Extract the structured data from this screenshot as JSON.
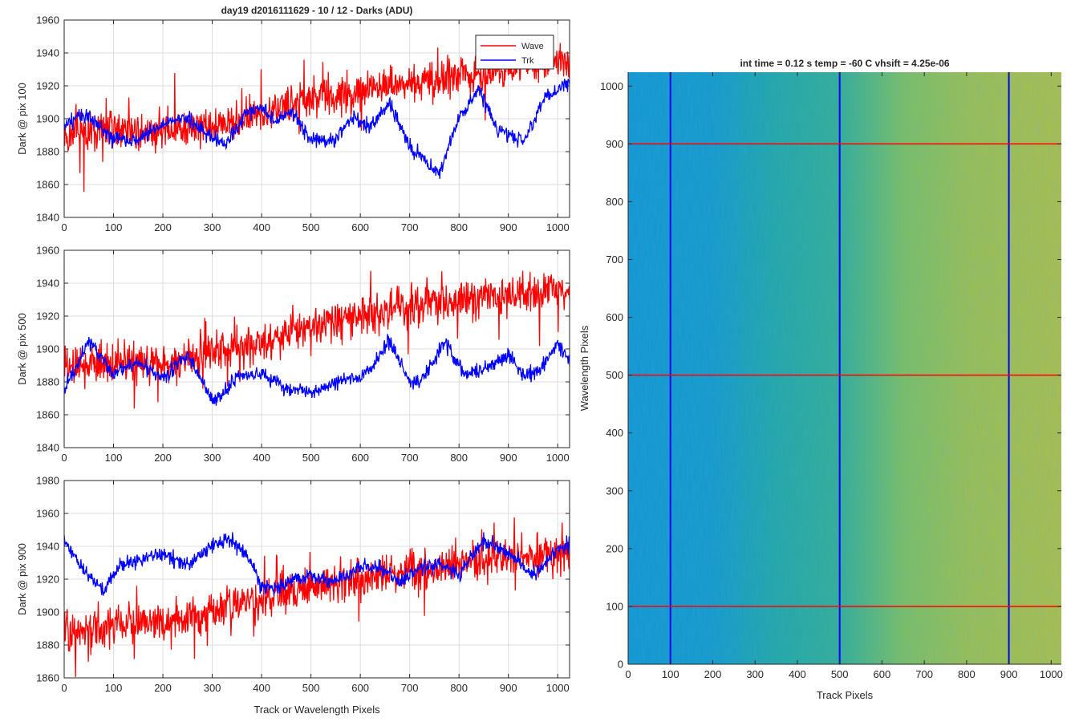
{
  "figure": {
    "title_left": "day19 d2016111629 - 10 / 12 - Darks (ADU)",
    "title_right": "int time = 0.12 s    temp = -60 C    vhsift = 4.25e-06"
  },
  "legend": {
    "items": [
      "Wave",
      "Trk"
    ]
  },
  "chart_data": [
    {
      "type": "line",
      "title": "day19 d2016111629 - 10 / 12 - Darks (ADU)",
      "ylabel": "Dark @ pix 100",
      "xlabel": "",
      "xlim": [
        0,
        1024
      ],
      "ylim": [
        1840,
        1960
      ],
      "xticks": [
        0,
        100,
        200,
        300,
        400,
        500,
        600,
        700,
        800,
        900,
        1000
      ],
      "yticks": [
        1840,
        1860,
        1880,
        1900,
        1920,
        1940,
        1960
      ],
      "grid": true,
      "legend_position": "top-right",
      "series": [
        {
          "name": "Wave",
          "color": "#ff0000",
          "x": [
            0,
            100,
            200,
            300,
            400,
            500,
            600,
            700,
            800,
            900,
            1000,
            1024
          ],
          "values": [
            1888,
            1895,
            1893,
            1896,
            1903,
            1912,
            1917,
            1922,
            1926,
            1930,
            1936,
            1934
          ]
        },
        {
          "name": "Trk",
          "color": "#0000ff",
          "x": [
            0,
            30,
            60,
            100,
            150,
            200,
            250,
            300,
            330,
            370,
            400,
            430,
            460,
            500,
            550,
            580,
            620,
            660,
            700,
            730,
            760,
            800,
            840,
            880,
            930,
            980,
            1024
          ],
          "values": [
            1895,
            1903,
            1898,
            1888,
            1887,
            1897,
            1900,
            1888,
            1885,
            1904,
            1907,
            1898,
            1904,
            1888,
            1887,
            1900,
            1895,
            1910,
            1883,
            1874,
            1866,
            1900,
            1918,
            1893,
            1886,
            1915,
            1922
          ]
        }
      ]
    },
    {
      "type": "line",
      "ylabel": "Dark @ pix 500",
      "xlabel": "",
      "xlim": [
        0,
        1024
      ],
      "ylim": [
        1840,
        1960
      ],
      "xticks": [
        0,
        100,
        200,
        300,
        400,
        500,
        600,
        700,
        800,
        900,
        1000
      ],
      "yticks": [
        1840,
        1860,
        1880,
        1900,
        1920,
        1940,
        1960
      ],
      "grid": true,
      "series": [
        {
          "name": "Wave",
          "color": "#ff0000",
          "x": [
            0,
            100,
            200,
            300,
            400,
            500,
            600,
            700,
            800,
            900,
            1000,
            1024
          ],
          "values": [
            1888,
            1892,
            1890,
            1898,
            1905,
            1915,
            1920,
            1925,
            1930,
            1932,
            1935,
            1938
          ]
        },
        {
          "name": "Trk",
          "color": "#0000ff",
          "x": [
            0,
            50,
            100,
            150,
            200,
            250,
            300,
            350,
            400,
            450,
            500,
            550,
            600,
            620,
            660,
            700,
            730,
            770,
            810,
            850,
            900,
            930,
            960,
            1000,
            1024
          ],
          "values": [
            1875,
            1905,
            1885,
            1892,
            1882,
            1897,
            1868,
            1882,
            1885,
            1876,
            1874,
            1880,
            1883,
            1888,
            1905,
            1880,
            1882,
            1905,
            1885,
            1887,
            1896,
            1885,
            1885,
            1904,
            1893
          ]
        }
      ]
    },
    {
      "type": "line",
      "ylabel": "Dark @ pix 900",
      "xlabel": "Track or Wavelength Pixels",
      "xlim": [
        0,
        1024
      ],
      "ylim": [
        1860,
        1980
      ],
      "xticks": [
        0,
        100,
        200,
        300,
        400,
        500,
        600,
        700,
        800,
        900,
        1000
      ],
      "yticks": [
        1860,
        1880,
        1900,
        1920,
        1940,
        1960,
        1980
      ],
      "grid": true,
      "series": [
        {
          "name": "Wave",
          "color": "#ff0000",
          "x": [
            0,
            100,
            200,
            300,
            400,
            500,
            600,
            700,
            800,
            900,
            1000,
            1024
          ],
          "values": [
            1888,
            1892,
            1893,
            1900,
            1908,
            1915,
            1921,
            1925,
            1928,
            1932,
            1935,
            1936
          ]
        },
        {
          "name": "Trk",
          "color": "#0000ff",
          "x": [
            0,
            40,
            80,
            110,
            150,
            200,
            250,
            300,
            330,
            370,
            400,
            440,
            470,
            500,
            540,
            600,
            640,
            680,
            710,
            760,
            800,
            850,
            890,
            950,
            1000,
            1024
          ],
          "values": [
            1943,
            1925,
            1913,
            1928,
            1932,
            1935,
            1928,
            1940,
            1945,
            1935,
            1915,
            1916,
            1920,
            1922,
            1918,
            1928,
            1927,
            1918,
            1925,
            1930,
            1923,
            1943,
            1938,
            1922,
            1938,
            1942
          ]
        }
      ]
    },
    {
      "type": "heatmap",
      "title": "int time = 0.12 s    temp = -60 C    vhsift = 4.25e-06",
      "xlabel": "Track Pixels",
      "ylabel": "Wavelength Pixels",
      "xlim": [
        0,
        1024
      ],
      "ylim": [
        0,
        1024
      ],
      "xticks": [
        0,
        100,
        200,
        300,
        400,
        500,
        600,
        700,
        800,
        900,
        1000
      ],
      "yticks": [
        0,
        100,
        200,
        300,
        400,
        500,
        600,
        700,
        800,
        900,
        1000
      ],
      "colormap": "parula",
      "gradient": {
        "x": [
          0,
          200,
          350,
          500,
          650,
          800,
          1024
        ],
        "level": [
          0.36,
          0.38,
          0.48,
          0.52,
          0.62,
          0.66,
          0.68
        ]
      },
      "marker_columns": [
        100,
        500,
        900
      ],
      "marker_rows": [
        100,
        500,
        900
      ],
      "marker_column_color": "#0000ff",
      "marker_row_color": "#ff0000"
    }
  ]
}
